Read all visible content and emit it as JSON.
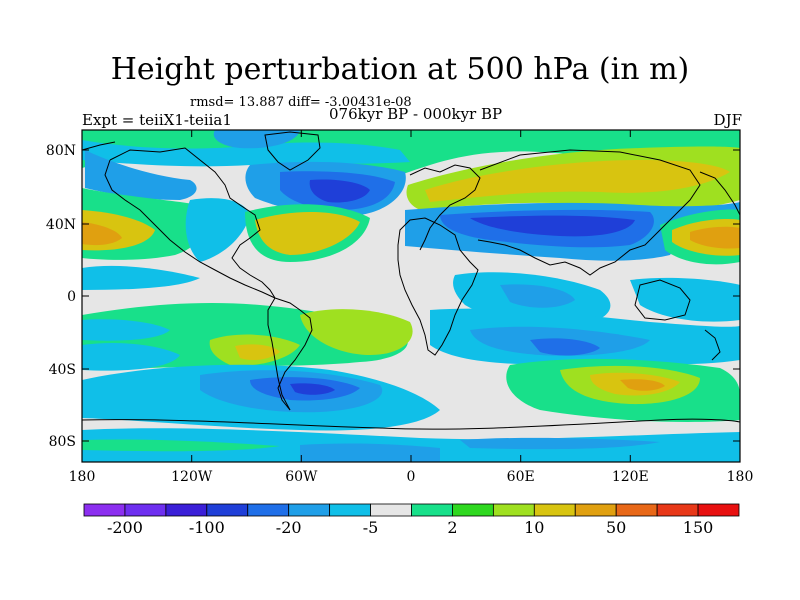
{
  "title": "Height perturbation at 500 hPa (in m)",
  "stats": "rmsd= 13.887 diff= -3.00431e-08",
  "experiment": "Expt = teiiX1-teiia1",
  "period": "076kyr BP - 000kyr BP",
  "season": "DJF",
  "lat_ticks": [
    "80N",
    "40N",
    "0",
    "40S",
    "80S"
  ],
  "lon_ticks": [
    "180",
    "120W",
    "60W",
    "0",
    "60E",
    "120E",
    "180"
  ],
  "colorbar": {
    "colors": [
      "#8c2ff0",
      "#6e2ff0",
      "#3b1fd8",
      "#1f3fd8",
      "#1f6fe8",
      "#1f9fe8",
      "#10bfe8",
      "#e6e6e6",
      "#18e08a",
      "#2fd820",
      "#9fe020",
      "#d8c410",
      "#e0a010",
      "#e86818",
      "#e83818",
      "#e81010"
    ],
    "labels": [
      "-200",
      "-100",
      "-20",
      "-5",
      "2",
      "10",
      "50",
      "150"
    ]
  }
}
